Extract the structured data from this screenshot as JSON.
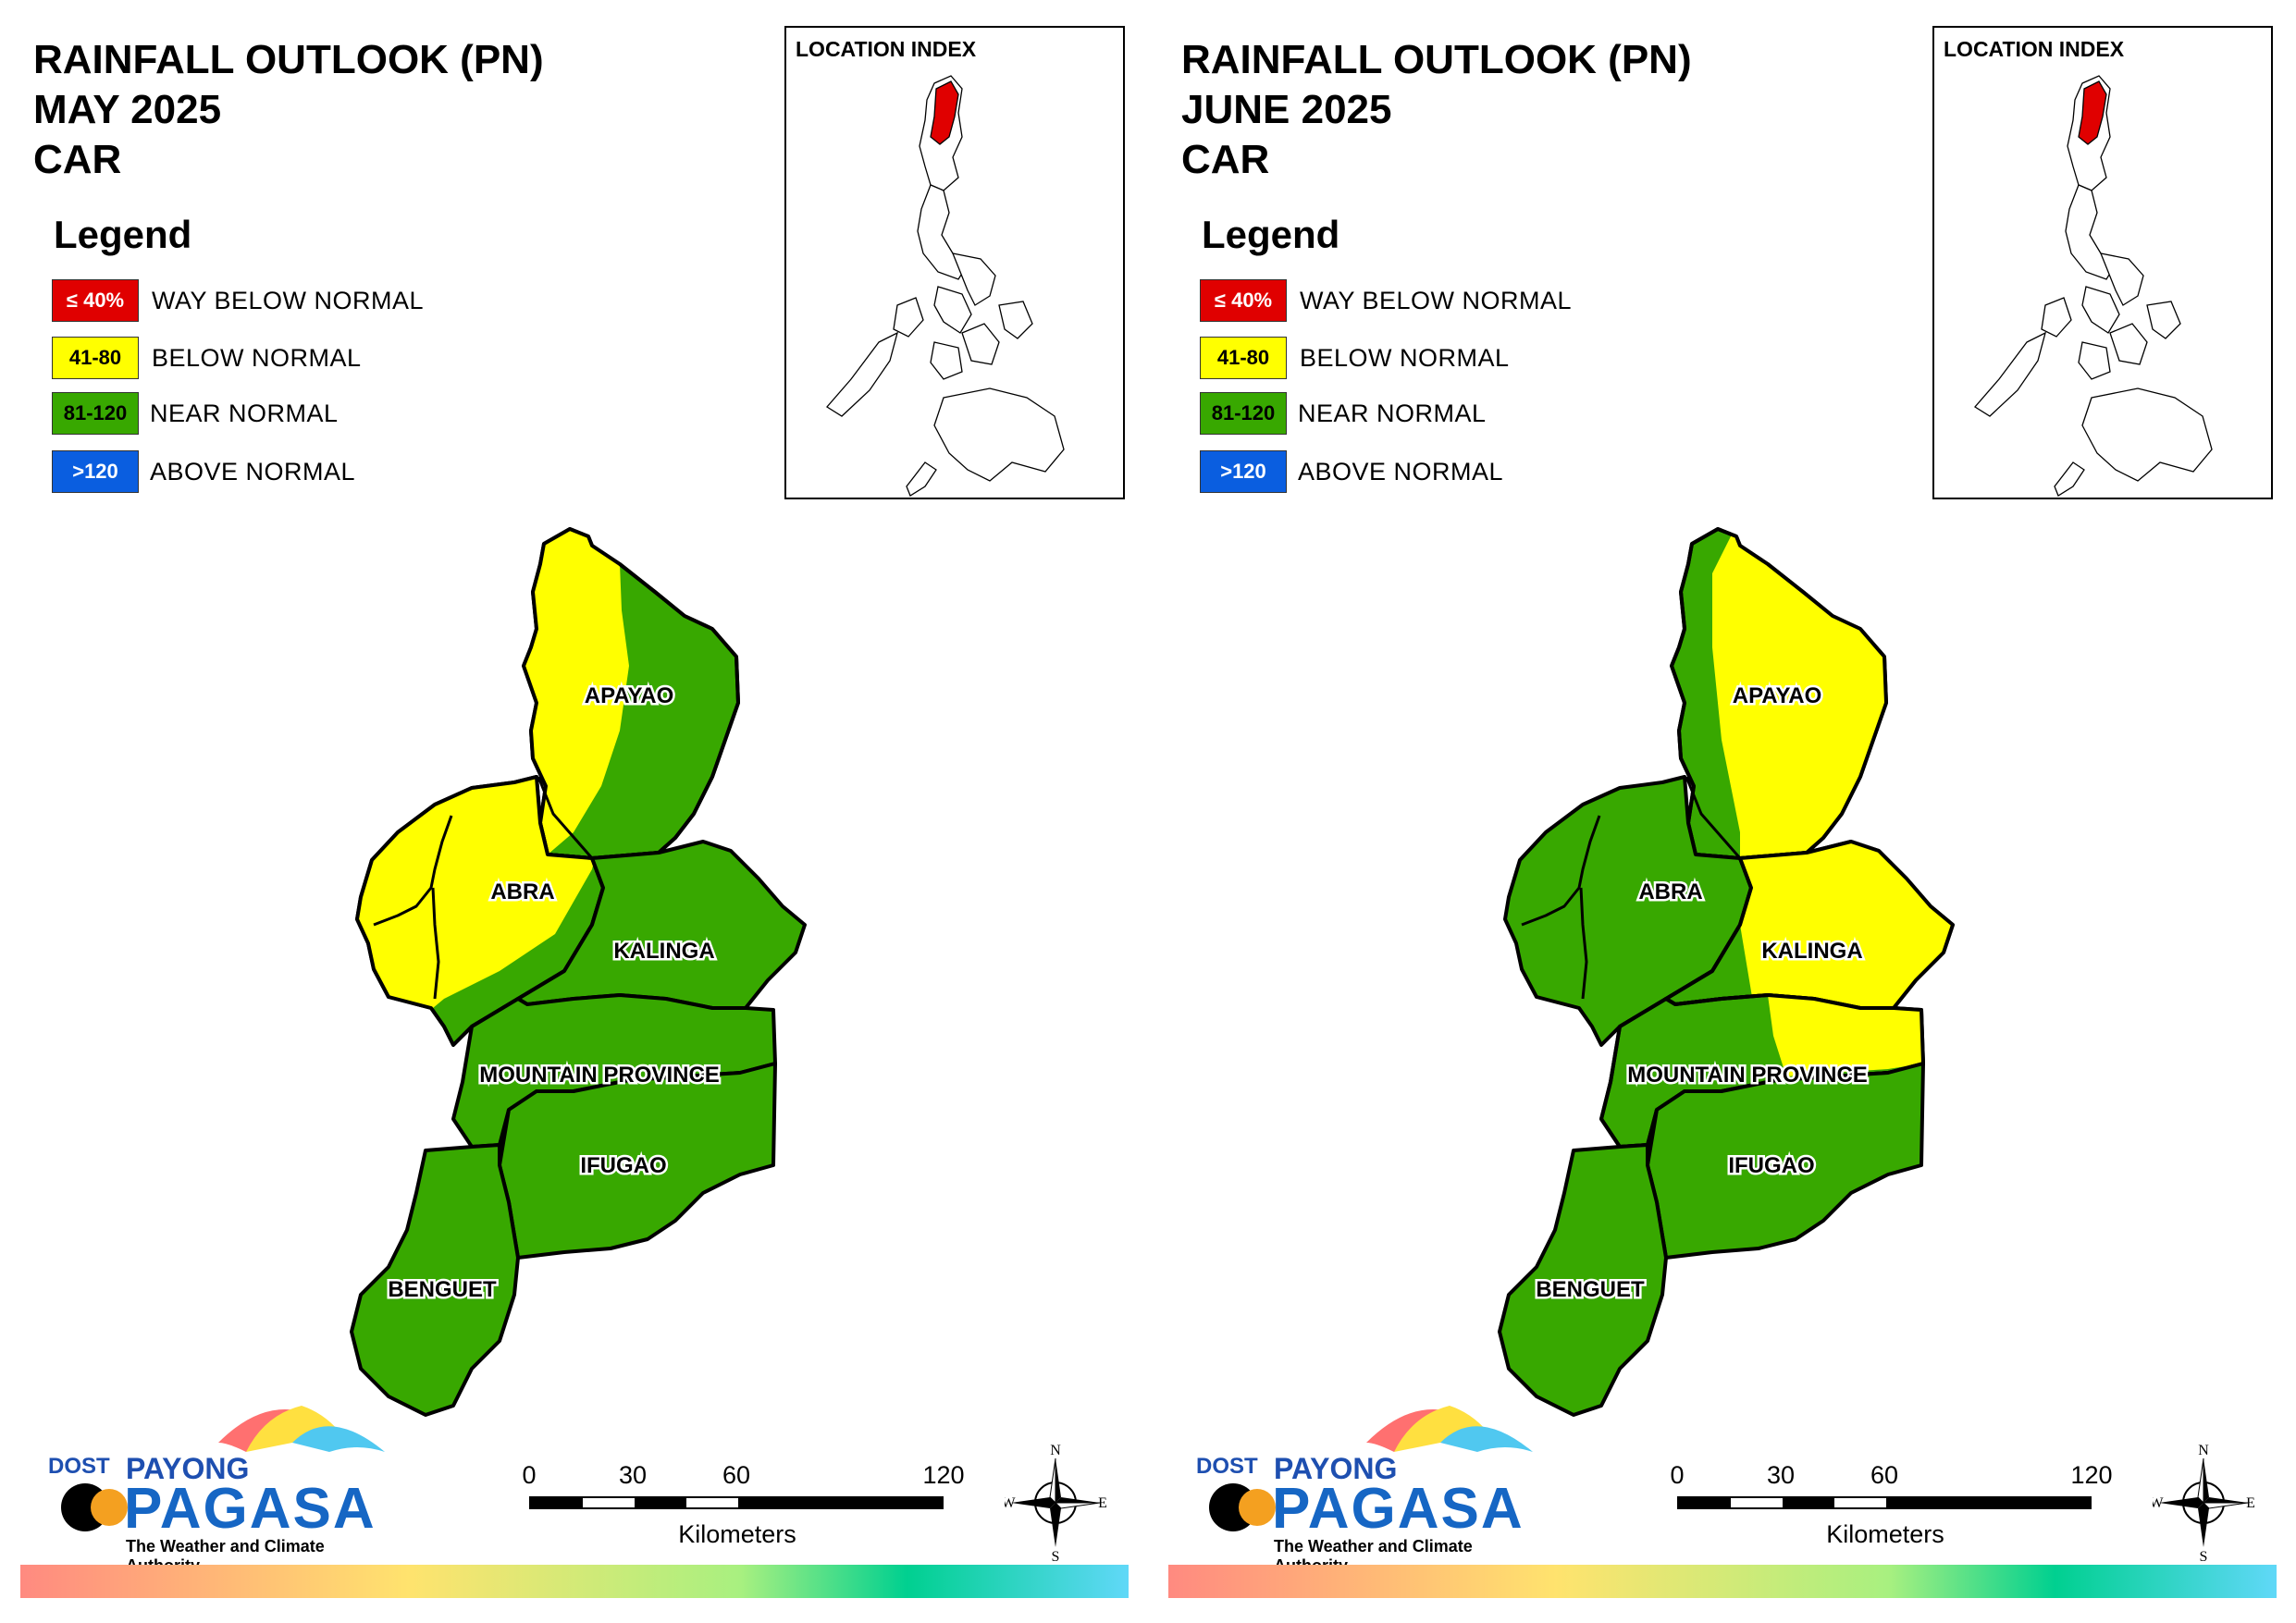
{
  "panels": [
    {
      "title_line1": "RAINFALL OUTLOOK (PN)",
      "title_line2": "MAY 2025",
      "title_line3": "CAR",
      "pattern": "may"
    },
    {
      "title_line1": "RAINFALL OUTLOOK (PN)",
      "title_line2": "JUNE 2025",
      "title_line3": "CAR",
      "pattern": "june"
    }
  ],
  "legend": {
    "title": "Legend",
    "items": [
      {
        "swatch_text": "≤ 40%",
        "label": "WAY BELOW NORMAL",
        "color": "#e00000",
        "text_color": "#ffffff"
      },
      {
        "swatch_text": "41-80",
        "label": "BELOW NORMAL",
        "color": "#ffff00",
        "text_color": "#000000"
      },
      {
        "swatch_text": "81-120",
        "label": "NEAR NORMAL",
        "color": "#38a800",
        "text_color": "#000000"
      },
      {
        "swatch_text": ">120",
        "label": "ABOVE NORMAL",
        "color": "#0a5ee0",
        "text_color": "#ffffff"
      }
    ]
  },
  "location_index": {
    "title": "LOCATION INDEX",
    "highlight_color": "#e00000"
  },
  "provinces": {
    "apayao": "APAYAO",
    "abra": "ABRA",
    "kalinga": "KALINGA",
    "mountain_province": "MOUNTAIN PROVINCE",
    "ifugao": "IFUGAO",
    "benguet": "BENGUET"
  },
  "scale": {
    "ticks": [
      "0",
      "30",
      "60",
      "120"
    ],
    "unit": "Kilometers"
  },
  "compass": {
    "n": "N",
    "s": "S",
    "e": "E",
    "w": "W"
  },
  "logo": {
    "dost": "DOST",
    "payong": "PAYONG",
    "pagasa": "PAGASA",
    "tagline": "The Weather and Climate Authority"
  },
  "colors": {
    "near_normal": "#38a800",
    "below_normal": "#ffff00",
    "outline": "#000000"
  }
}
